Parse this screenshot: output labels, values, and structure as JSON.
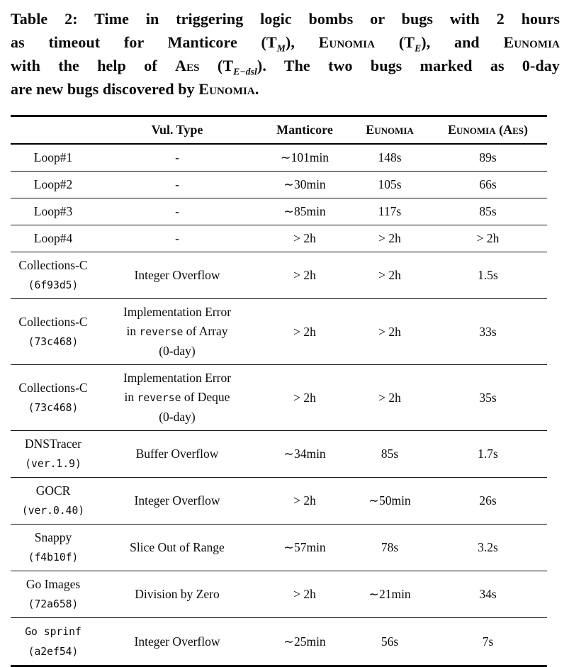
{
  "colors": {
    "text": "#0b0b0b",
    "background": "#ffffff",
    "rule": "#000000"
  },
  "caption": {
    "label": "Table 2",
    "lines": [
      {
        "segments": [
          {
            "t": "Table 2: Time in triggering logic bombs or bugs with 2 hours"
          }
        ]
      },
      {
        "segments": [
          {
            "t": "as timeout for Manticore (T"
          },
          {
            "t": "M",
            "sub": true
          },
          {
            "t": "), "
          },
          {
            "t": "Eunomia",
            "sc": true
          },
          {
            "t": " (T"
          },
          {
            "t": "E",
            "sub": true
          },
          {
            "t": "), and "
          },
          {
            "t": "Eunomia",
            "sc": true
          }
        ]
      },
      {
        "segments": [
          {
            "t": "with the help of "
          },
          {
            "t": "Aes",
            "sc": true
          },
          {
            "t": " (T"
          },
          {
            "t": "E−dsl",
            "sub": true
          },
          {
            "t": "). The two bugs marked as 0-day"
          }
        ]
      },
      {
        "segments": [
          {
            "t": "are new bugs discovered by "
          },
          {
            "t": "Eunomia",
            "sc": true
          },
          {
            "t": "."
          }
        ]
      }
    ]
  },
  "table": {
    "columns": [
      {
        "label": "",
        "sc": false
      },
      {
        "label": "Vul. Type",
        "sc": false
      },
      {
        "label": "Manticore",
        "sc": false
      },
      {
        "label": "Eunomia",
        "sc": true
      },
      {
        "label": "Eunomia (Aes)",
        "sc": true
      }
    ],
    "rows": [
      {
        "name": [
          [
            {
              "t": "Loop#1"
            }
          ]
        ],
        "vul": [
          [
            {
              "t": "-"
            }
          ]
        ],
        "times": [
          "∼101min",
          "148s",
          "89s"
        ]
      },
      {
        "name": [
          [
            {
              "t": "Loop#2"
            }
          ]
        ],
        "vul": [
          [
            {
              "t": "-"
            }
          ]
        ],
        "times": [
          "∼30min",
          "105s",
          "66s"
        ]
      },
      {
        "name": [
          [
            {
              "t": "Loop#3"
            }
          ]
        ],
        "vul": [
          [
            {
              "t": "-"
            }
          ]
        ],
        "times": [
          "∼85min",
          "117s",
          "85s"
        ]
      },
      {
        "name": [
          [
            {
              "t": "Loop#4"
            }
          ]
        ],
        "vul": [
          [
            {
              "t": "-"
            }
          ]
        ],
        "times": [
          "> 2h",
          "> 2h",
          "> 2h"
        ]
      },
      {
        "name": [
          [
            {
              "t": "Collections-C"
            }
          ],
          [
            {
              "t": "(6f93d5)",
              "mono": true
            }
          ]
        ],
        "vul": [
          [
            {
              "t": "Integer Overflow"
            }
          ]
        ],
        "times": [
          "> 2h",
          "> 2h",
          "1.5s"
        ]
      },
      {
        "name": [
          [
            {
              "t": "Collections-C"
            }
          ],
          [
            {
              "t": "(73c468)",
              "mono": true
            }
          ]
        ],
        "vul": [
          [
            {
              "t": "Implementation Error"
            }
          ],
          [
            {
              "t": "in "
            },
            {
              "t": "reverse",
              "mono": true
            },
            {
              "t": " of Array"
            }
          ],
          [
            {
              "t": "(0-day)"
            }
          ]
        ],
        "times": [
          "> 2h",
          "> 2h",
          "33s"
        ]
      },
      {
        "name": [
          [
            {
              "t": "Collections-C"
            }
          ],
          [
            {
              "t": "(73c468)",
              "mono": true
            }
          ]
        ],
        "vul": [
          [
            {
              "t": "Implementation Error"
            }
          ],
          [
            {
              "t": "in "
            },
            {
              "t": "reverse",
              "mono": true
            },
            {
              "t": " of Deque"
            }
          ],
          [
            {
              "t": "(0-day)"
            }
          ]
        ],
        "times": [
          "> 2h",
          "> 2h",
          "35s"
        ]
      },
      {
        "name": [
          [
            {
              "t": "DNSTracer"
            }
          ],
          [
            {
              "t": "(ver.1.9)",
              "mono": true
            }
          ]
        ],
        "vul": [
          [
            {
              "t": "Buffer Overflow"
            }
          ]
        ],
        "times": [
          "∼34min",
          "85s",
          "1.7s"
        ]
      },
      {
        "name": [
          [
            {
              "t": "GOCR"
            }
          ],
          [
            {
              "t": "(ver.0.40)",
              "mono": true
            }
          ]
        ],
        "vul": [
          [
            {
              "t": "Integer Overflow"
            }
          ]
        ],
        "times": [
          "> 2h",
          "∼50min",
          "26s"
        ]
      },
      {
        "name": [
          [
            {
              "t": "Snappy"
            }
          ],
          [
            {
              "t": "(f4b10f)",
              "mono": true
            }
          ]
        ],
        "vul": [
          [
            {
              "t": "Slice Out of Range"
            }
          ]
        ],
        "times": [
          "∼57min",
          "78s",
          "3.2s"
        ]
      },
      {
        "name": [
          [
            {
              "t": "Go Images"
            }
          ],
          [
            {
              "t": "(72a658)",
              "mono": true
            }
          ]
        ],
        "vul": [
          [
            {
              "t": "Division by Zero"
            }
          ]
        ],
        "times": [
          "> 2h",
          "∼21min",
          "34s"
        ]
      },
      {
        "name": [
          [
            {
              "t": "Go sprinf",
              "mono": true
            }
          ],
          [
            {
              "t": "(a2ef54)",
              "mono": true
            }
          ]
        ],
        "vul": [
          [
            {
              "t": "Integer Overflow"
            }
          ]
        ],
        "times": [
          "∼25min",
          "56s",
          "7s"
        ]
      }
    ]
  }
}
